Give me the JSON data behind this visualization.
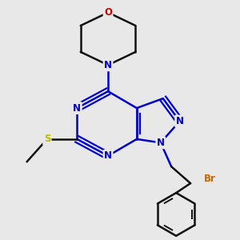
{
  "background_color": "#e8e8e8",
  "bond_color_blue": "#0000cc",
  "bond_color_black": "#111111",
  "atom_colors": {
    "N": "#0000cc",
    "O": "#cc0000",
    "S": "#bbbb00",
    "Br": "#cc6600",
    "C": "#111111"
  },
  "figsize": [
    3.0,
    3.0
  ],
  "dpi": 100
}
